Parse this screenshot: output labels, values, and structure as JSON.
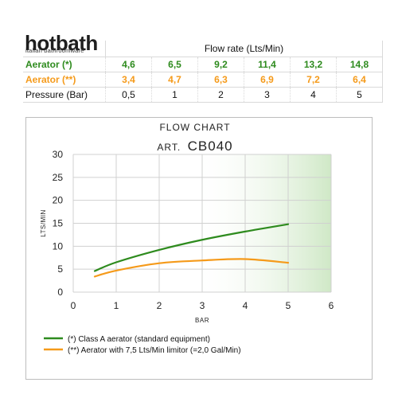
{
  "brand": {
    "name": "hotbath",
    "tagline": "italian bathroomware"
  },
  "table": {
    "header": "Flow rate (Lts/Min)",
    "rows": [
      {
        "label": "Aerator (*)",
        "color": "#2e8b1e",
        "values": [
          "4,6",
          "6,5",
          "9,2",
          "11,4",
          "13,2",
          "14,8"
        ]
      },
      {
        "label": "Aerator (**)",
        "color": "#f59a1a",
        "values": [
          "3,4",
          "4,7",
          "6,3",
          "6,9",
          "7,2",
          "6,4"
        ]
      },
      {
        "label": "Pressure (Bar)",
        "color": "#111111",
        "values": [
          "0,5",
          "1",
          "2",
          "3",
          "4",
          "5"
        ]
      }
    ]
  },
  "chart_data": {
    "type": "line",
    "title": "FLOW CHART",
    "subtitle_prefix": "ART.",
    "subtitle_code": "CB040",
    "xlabel": "BAR",
    "ylabel": "LTS/MIN",
    "xlim": [
      0,
      6
    ],
    "ylim": [
      0,
      30
    ],
    "xticks": [
      0,
      1,
      2,
      3,
      4,
      5,
      6
    ],
    "yticks": [
      0,
      5,
      10,
      15,
      20,
      25,
      30
    ],
    "grid": true,
    "legend_position": "bottom",
    "series": [
      {
        "name": "(*) Class A aerator (standard equipment)",
        "color": "#2e8b1e",
        "x": [
          0.5,
          1,
          2,
          3,
          4,
          5
        ],
        "y": [
          4.6,
          6.5,
          9.2,
          11.4,
          13.2,
          14.8
        ]
      },
      {
        "name": "(**) Aerator with 7,5 Lts/Min limitor (=2,0 Gal/Min)",
        "color": "#f59a1a",
        "x": [
          0.5,
          1,
          2,
          3,
          4,
          5
        ],
        "y": [
          3.4,
          4.7,
          6.3,
          6.9,
          7.2,
          6.4
        ]
      }
    ]
  }
}
